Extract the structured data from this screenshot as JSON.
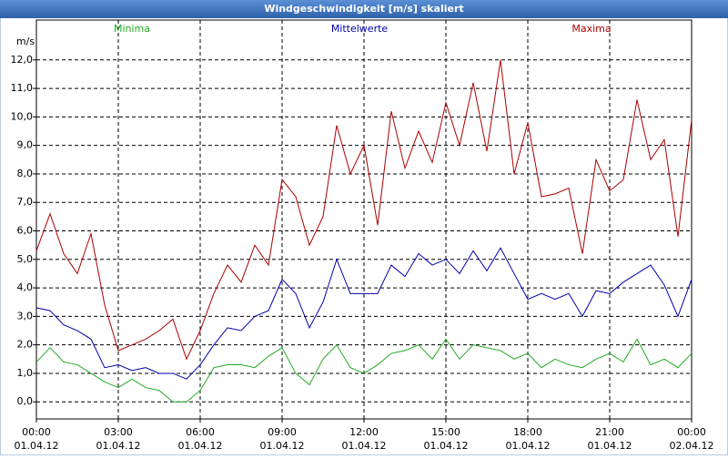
{
  "chart_data": {
    "type": "line",
    "title": "Windgeschwindigkeit [m/s] skaliert",
    "ylabel": "m/s",
    "x": [
      0,
      0.5,
      1,
      1.5,
      2,
      2.5,
      3,
      3.5,
      4,
      4.5,
      5,
      5.5,
      6,
      6.5,
      7,
      7.5,
      8,
      8.5,
      9,
      9.5,
      10,
      10.5,
      11,
      11.5,
      12,
      12.5,
      13,
      13.5,
      14,
      14.5,
      15,
      15.5,
      16,
      16.5,
      17,
      17.5,
      18,
      18.5,
      19,
      19.5,
      20,
      20.5,
      21,
      21.5,
      22,
      22.5,
      23,
      23.5,
      24
    ],
    "series": [
      {
        "name": "Minima",
        "color": "#22aa22",
        "values": [
          1.4,
          1.9,
          1.4,
          1.3,
          1.0,
          0.7,
          0.5,
          0.8,
          0.5,
          0.4,
          0.0,
          0.0,
          0.4,
          1.2,
          1.3,
          1.3,
          1.2,
          1.6,
          1.9,
          1.0,
          0.6,
          1.5,
          2.0,
          1.2,
          1.0,
          1.3,
          1.7,
          1.8,
          2.0,
          1.5,
          2.2,
          1.5,
          2.0,
          1.9,
          1.8,
          1.5,
          1.7,
          1.2,
          1.5,
          1.3,
          1.2,
          1.5,
          1.7,
          1.4,
          2.2,
          1.3,
          1.5,
          1.2,
          1.7
        ]
      },
      {
        "name": "Mittelwerte",
        "color": "#0000aa",
        "values": [
          3.3,
          3.2,
          2.7,
          2.5,
          2.2,
          1.2,
          1.3,
          1.1,
          1.2,
          1.0,
          1.0,
          0.8,
          1.3,
          2.0,
          2.6,
          2.5,
          3.0,
          3.2,
          4.3,
          3.8,
          2.6,
          3.5,
          5.0,
          3.8,
          3.8,
          3.8,
          4.8,
          4.4,
          5.2,
          4.8,
          5.0,
          4.5,
          5.3,
          4.6,
          5.4,
          4.5,
          3.6,
          3.8,
          3.6,
          3.8,
          3.0,
          3.9,
          3.8,
          4.2,
          4.5,
          4.8,
          4.1,
          3.0,
          4.3
        ]
      },
      {
        "name": "Maxima",
        "color": "#aa0000",
        "values": [
          5.3,
          6.6,
          5.2,
          4.5,
          5.9,
          3.4,
          1.8,
          2.0,
          2.2,
          2.5,
          2.9,
          1.5,
          2.5,
          3.8,
          4.8,
          4.2,
          5.5,
          4.8,
          7.8,
          7.2,
          5.5,
          6.5,
          9.7,
          8.0,
          9.0,
          6.2,
          10.2,
          8.2,
          9.5,
          8.4,
          10.5,
          9.0,
          11.2,
          8.8,
          12.0,
          8.0,
          9.8,
          7.2,
          7.3,
          7.5,
          5.2,
          8.5,
          7.4,
          7.8,
          10.6,
          8.5,
          9.2,
          5.8,
          9.9
        ]
      }
    ],
    "xlim": [
      0,
      24
    ],
    "xticks": [
      {
        "value": 0,
        "label": "00:00 01.04.12"
      },
      {
        "value": 3,
        "label": "03:00 01.04.12"
      },
      {
        "value": 6,
        "label": "06:00 01.04.12"
      },
      {
        "value": 9,
        "label": "09:00 01.04.12"
      },
      {
        "value": 12,
        "label": "12:00 01.04.12"
      },
      {
        "value": 15,
        "label": "15:00 01.04.12"
      },
      {
        "value": 18,
        "label": "18:00 01.04.12"
      },
      {
        "value": 21,
        "label": "21:00 01.04.12"
      },
      {
        "value": 24,
        "label": "00:00 02.04.12"
      }
    ],
    "ylim": [
      -0.6,
      13.4
    ],
    "yticks": [
      {
        "value": 0,
        "label": "0,0"
      },
      {
        "value": 1,
        "label": "1,0"
      },
      {
        "value": 2,
        "label": "2,0"
      },
      {
        "value": 3,
        "label": "3,0"
      },
      {
        "value": 4,
        "label": "4,0"
      },
      {
        "value": 5,
        "label": "5,0"
      },
      {
        "value": 6,
        "label": "6,0"
      },
      {
        "value": 7,
        "label": "7,0"
      },
      {
        "value": 8,
        "label": "8,0"
      },
      {
        "value": 9,
        "label": "9,0"
      },
      {
        "value": 10,
        "label": "10,0"
      },
      {
        "value": 11,
        "label": "11,0"
      },
      {
        "value": 12,
        "label": "12,0"
      }
    ],
    "grid": true
  }
}
